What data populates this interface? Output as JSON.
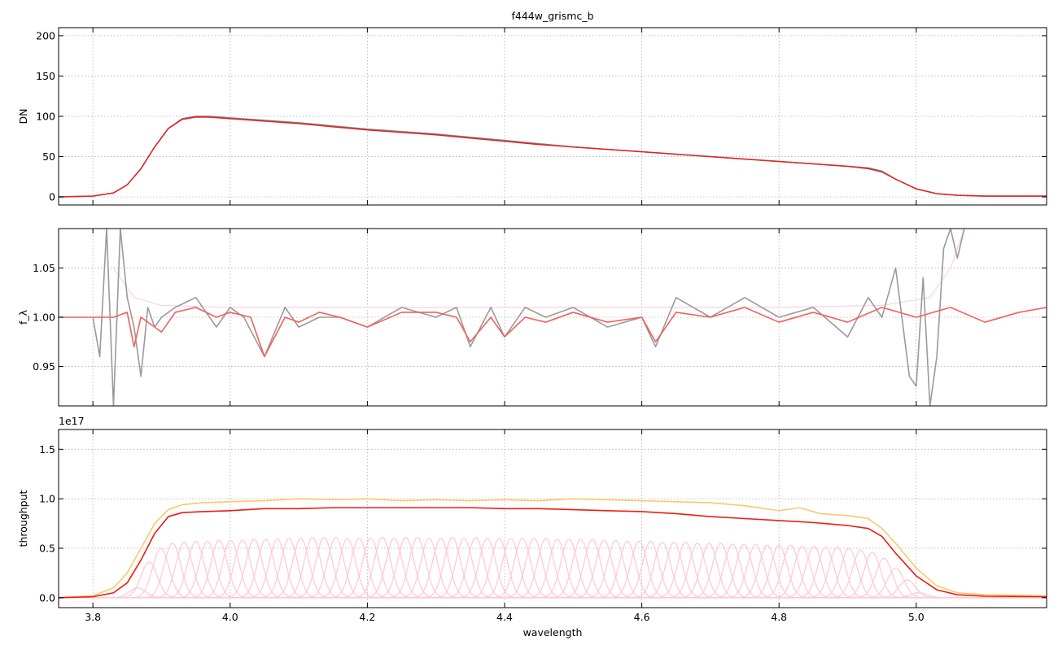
{
  "figure": {
    "title": "f444w_grismc_b",
    "xlabel": "wavelength",
    "xlim": [
      3.75,
      5.19
    ],
    "x_ticks": [
      3.8,
      4.0,
      4.2,
      4.4,
      4.6,
      4.8,
      5.0
    ],
    "x_tick_labels": [
      "3.8",
      "4.0",
      "4.2",
      "4.4",
      "4.6",
      "4.8",
      "5.0"
    ],
    "grid": true,
    "colors": {
      "data_gray": "#7f7f7f",
      "model_red": "#e8201a",
      "sum_orange": "#fbc86a",
      "components_pink": "#ffb6c1"
    }
  },
  "chart_data": [
    {
      "type": "line",
      "ylabel": "DN",
      "ylim": [
        -10,
        210
      ],
      "y_ticks": [
        0,
        50,
        100,
        150,
        200
      ],
      "y_tick_labels": [
        "0",
        "50",
        "100",
        "150",
        "200"
      ],
      "series": [
        {
          "color": "#7f7f7f",
          "width": 1.6,
          "x": [
            3.75,
            3.8,
            3.83,
            3.85,
            3.87,
            3.89,
            3.91,
            3.93,
            3.95,
            3.97,
            4.0,
            4.05,
            4.1,
            4.15,
            4.2,
            4.25,
            4.3,
            4.35,
            4.4,
            4.45,
            4.5,
            4.55,
            4.6,
            4.65,
            4.7,
            4.75,
            4.8,
            4.85,
            4.9,
            4.93,
            4.95,
            4.97,
            5.0,
            5.03,
            5.06,
            5.1,
            5.19
          ],
          "y": [
            0,
            1,
            5,
            15,
            35,
            62,
            85,
            97,
            100,
            100,
            98,
            95,
            92,
            88,
            84,
            81,
            78,
            74,
            70,
            66,
            62,
            59,
            56,
            53,
            50,
            47,
            44,
            41,
            38,
            36,
            32,
            22,
            10,
            4,
            2,
            1,
            1
          ]
        },
        {
          "color": "#e8201a",
          "width": 1.4,
          "x": [
            3.75,
            3.8,
            3.83,
            3.85,
            3.87,
            3.89,
            3.91,
            3.93,
            3.95,
            3.97,
            4.0,
            4.05,
            4.1,
            4.15,
            4.2,
            4.25,
            4.3,
            4.35,
            4.4,
            4.45,
            4.5,
            4.55,
            4.6,
            4.65,
            4.7,
            4.75,
            4.8,
            4.85,
            4.9,
            4.93,
            4.95,
            4.97,
            5.0,
            5.03,
            5.06,
            5.1,
            5.19
          ],
          "y": [
            0,
            1,
            5,
            15,
            35,
            62,
            85,
            96,
            99,
            99,
            97,
            94,
            91,
            87,
            83,
            80,
            77,
            73,
            69,
            65,
            62,
            59,
            56,
            53,
            50,
            47,
            44,
            41,
            38,
            35,
            31,
            22,
            10,
            4,
            2,
            1,
            1
          ]
        }
      ]
    },
    {
      "type": "line",
      "ylabel": "f_λ",
      "ylim": [
        0.91,
        1.09
      ],
      "y_ticks": [
        0.95,
        1.0,
        1.05
      ],
      "y_tick_labels": [
        "0.95",
        "1.00",
        "1.05"
      ],
      "series": [
        {
          "color": "#ffd1dc",
          "width": 1.2,
          "x": [
            3.83,
            3.86,
            3.9,
            4.0,
            4.2,
            4.4,
            4.6,
            4.8,
            4.95,
            5.02,
            5.05,
            5.07
          ],
          "y": [
            1.05,
            1.02,
            1.012,
            1.01,
            1.01,
            1.01,
            1.01,
            1.01,
            1.012,
            1.02,
            1.05,
            1.09
          ]
        },
        {
          "color": "#9a9a9a",
          "width": 1.6,
          "x": [
            3.8,
            3.81,
            3.82,
            3.83,
            3.84,
            3.85,
            3.86,
            3.87,
            3.88,
            3.89,
            3.9,
            3.92,
            3.95,
            3.98,
            4.0,
            4.02,
            4.05,
            4.08,
            4.1,
            4.13,
            4.16,
            4.2,
            4.25,
            4.3,
            4.33,
            4.35,
            4.38,
            4.4,
            4.43,
            4.46,
            4.5,
            4.55,
            4.6,
            4.62,
            4.65,
            4.7,
            4.75,
            4.8,
            4.85,
            4.9,
            4.93,
            4.95,
            4.97,
            4.99,
            5.0,
            5.01,
            5.02,
            5.03,
            5.04,
            5.05,
            5.06,
            5.07
          ],
          "y": [
            1.0,
            0.96,
            1.09,
            0.91,
            1.09,
            1.02,
            0.99,
            0.94,
            1.01,
            0.99,
            1.0,
            1.01,
            1.02,
            0.99,
            1.01,
            1.0,
            0.96,
            1.01,
            0.99,
            1.0,
            1.0,
            0.99,
            1.01,
            1.0,
            1.01,
            0.97,
            1.01,
            0.98,
            1.01,
            1.0,
            1.01,
            0.99,
            1.0,
            0.97,
            1.02,
            1.0,
            1.02,
            1.0,
            1.01,
            0.98,
            1.02,
            1.0,
            1.05,
            0.94,
            0.93,
            1.04,
            0.91,
            0.96,
            1.07,
            1.09,
            1.06,
            1.09
          ]
        },
        {
          "color": "#f2615c",
          "width": 1.6,
          "x": [
            3.75,
            3.8,
            3.83,
            3.85,
            3.86,
            3.87,
            3.89,
            3.9,
            3.92,
            3.95,
            3.98,
            4.0,
            4.03,
            4.05,
            4.08,
            4.1,
            4.13,
            4.16,
            4.2,
            4.25,
            4.3,
            4.33,
            4.35,
            4.38,
            4.4,
            4.43,
            4.46,
            4.5,
            4.55,
            4.6,
            4.62,
            4.65,
            4.7,
            4.75,
            4.8,
            4.85,
            4.9,
            4.95,
            5.0,
            5.05,
            5.1,
            5.15,
            5.19
          ],
          "y": [
            1.0,
            1.0,
            1.0,
            1.005,
            0.97,
            1.0,
            0.99,
            0.985,
            1.005,
            1.01,
            1.0,
            1.005,
            1.0,
            0.96,
            1.0,
            0.995,
            1.005,
            1.0,
            0.99,
            1.005,
            1.005,
            1.0,
            0.975,
            1.0,
            0.98,
            1.0,
            0.995,
            1.005,
            0.995,
            1.0,
            0.975,
            1.005,
            1.0,
            1.01,
            0.995,
            1.005,
            0.995,
            1.01,
            1.0,
            1.01,
            0.995,
            1.005,
            1.01
          ]
        }
      ]
    },
    {
      "type": "line",
      "ylabel": "throughput",
      "ylim": [
        -0.1,
        1.7
      ],
      "y_ticks": [
        0.0,
        0.5,
        1.0,
        1.5
      ],
      "y_tick_labels": [
        "0.0",
        "0.5",
        "1.0",
        "1.5"
      ],
      "offset_text": "1e17",
      "components": {
        "color": "#ffc9d2",
        "sigma": 0.012,
        "centers": [
          3.865,
          3.882,
          3.899,
          3.916,
          3.933,
          3.95,
          3.967,
          3.984,
          4.001,
          4.018,
          4.035,
          4.052,
          4.069,
          4.086,
          4.103,
          4.12,
          4.137,
          4.154,
          4.171,
          4.188,
          4.205,
          4.222,
          4.239,
          4.256,
          4.273,
          4.29,
          4.307,
          4.324,
          4.341,
          4.358,
          4.375,
          4.392,
          4.409,
          4.426,
          4.443,
          4.46,
          4.477,
          4.494,
          4.511,
          4.528,
          4.545,
          4.562,
          4.579,
          4.596,
          4.613,
          4.63,
          4.647,
          4.664,
          4.681,
          4.698,
          4.715,
          4.732,
          4.749,
          4.766,
          4.783,
          4.8,
          4.817,
          4.834,
          4.851,
          4.868,
          4.885,
          4.902,
          4.919,
          4.936,
          4.953,
          4.97,
          4.987,
          5.004
        ],
        "heights": [
          0.1,
          0.36,
          0.5,
          0.55,
          0.56,
          0.57,
          0.57,
          0.58,
          0.58,
          0.58,
          0.59,
          0.59,
          0.59,
          0.6,
          0.6,
          0.61,
          0.61,
          0.61,
          0.6,
          0.6,
          0.6,
          0.61,
          0.6,
          0.61,
          0.61,
          0.6,
          0.6,
          0.61,
          0.6,
          0.61,
          0.6,
          0.6,
          0.6,
          0.6,
          0.6,
          0.6,
          0.59,
          0.59,
          0.59,
          0.59,
          0.58,
          0.58,
          0.57,
          0.57,
          0.57,
          0.56,
          0.56,
          0.56,
          0.55,
          0.55,
          0.55,
          0.54,
          0.54,
          0.54,
          0.53,
          0.53,
          0.53,
          0.52,
          0.52,
          0.51,
          0.51,
          0.5,
          0.48,
          0.46,
          0.4,
          0.3,
          0.18,
          0.05
        ]
      },
      "series": [
        {
          "color": "#fbc86a",
          "width": 1.6,
          "x": [
            3.75,
            3.8,
            3.83,
            3.85,
            3.87,
            3.89,
            3.91,
            3.93,
            3.96,
            4.0,
            4.05,
            4.1,
            4.15,
            4.2,
            4.25,
            4.3,
            4.35,
            4.4,
            4.45,
            4.5,
            4.55,
            4.6,
            4.65,
            4.7,
            4.75,
            4.8,
            4.83,
            4.86,
            4.9,
            4.93,
            4.95,
            4.97,
            5.0,
            5.03,
            5.06,
            5.1,
            5.19
          ],
          "y": [
            0,
            0.02,
            0.1,
            0.25,
            0.5,
            0.75,
            0.89,
            0.94,
            0.96,
            0.97,
            0.98,
            1.0,
            0.99,
            1.0,
            0.98,
            0.99,
            0.98,
            0.99,
            0.98,
            1.0,
            0.99,
            0.98,
            0.97,
            0.96,
            0.93,
            0.88,
            0.91,
            0.85,
            0.83,
            0.8,
            0.7,
            0.55,
            0.3,
            0.12,
            0.05,
            0.03,
            0.02
          ]
        },
        {
          "color": "#ee1c0f",
          "width": 1.6,
          "x": [
            3.75,
            3.8,
            3.83,
            3.85,
            3.87,
            3.89,
            3.91,
            3.93,
            3.96,
            4.0,
            4.05,
            4.1,
            4.15,
            4.2,
            4.25,
            4.3,
            4.35,
            4.4,
            4.45,
            4.5,
            4.55,
            4.6,
            4.65,
            4.7,
            4.75,
            4.8,
            4.85,
            4.9,
            4.93,
            4.95,
            4.97,
            5.0,
            5.03,
            5.06,
            5.1,
            5.19
          ],
          "y": [
            0,
            0.01,
            0.05,
            0.15,
            0.38,
            0.65,
            0.82,
            0.86,
            0.87,
            0.88,
            0.9,
            0.9,
            0.91,
            0.91,
            0.91,
            0.91,
            0.91,
            0.9,
            0.9,
            0.89,
            0.88,
            0.87,
            0.85,
            0.82,
            0.8,
            0.78,
            0.76,
            0.73,
            0.7,
            0.62,
            0.45,
            0.22,
            0.08,
            0.03,
            0.015,
            0.01
          ]
        }
      ]
    }
  ]
}
